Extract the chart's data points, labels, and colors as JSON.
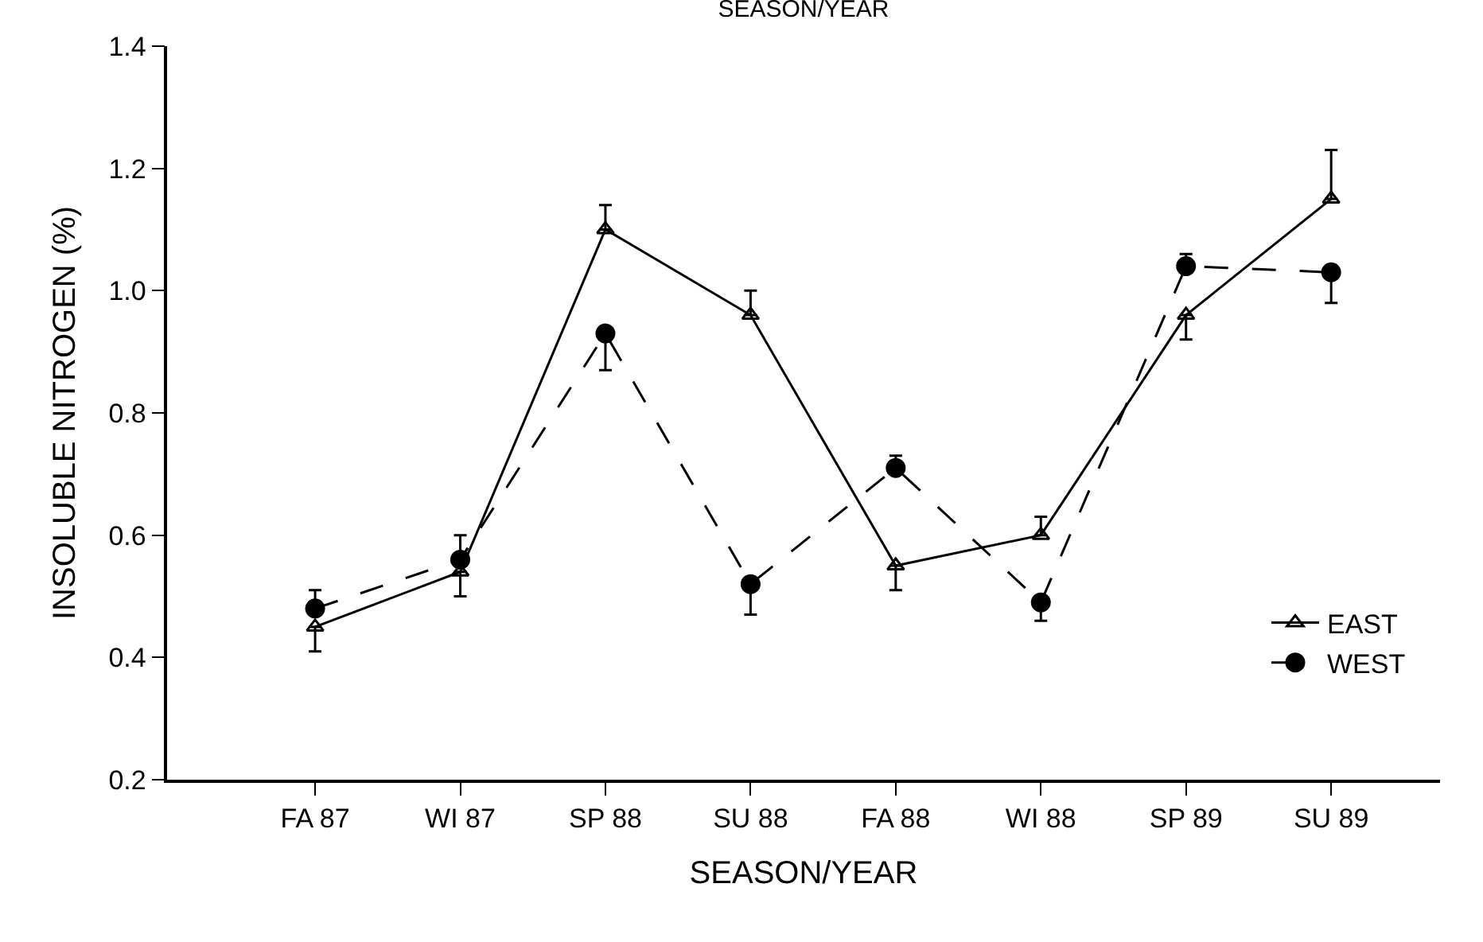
{
  "chart_data": {
    "type": "line",
    "title": "SEASON/YEAR",
    "xlabel": "SEASON/YEAR",
    "ylabel": "INSOLUBLE NITROGEN (%)",
    "categories": [
      "FA 87",
      "WI 87",
      "SP 88",
      "SU 88",
      "FA 88",
      "WI 88",
      "SP 89",
      "SU 89"
    ],
    "ylim": [
      0.2,
      1.4
    ],
    "yticks": [
      0.2,
      0.4,
      0.6,
      0.8,
      {
        "value": 1,
        "label": "1.0"
      },
      1.2,
      1.4
    ],
    "legend": "bottom right",
    "series": [
      {
        "name": "EAST",
        "color": "#000000",
        "marker": "triangle",
        "line_style": "solid",
        "values": [
          0.45,
          0.54,
          1.1,
          0.96,
          0.55,
          0.6,
          0.96,
          1.15
        ],
        "errors": [
          [
            0.41,
            0.45
          ],
          [
            0.5,
            0.54
          ],
          [
            1.1,
            1.14
          ],
          [
            0.96,
            1.0
          ],
          [
            0.51,
            0.55
          ],
          [
            0.6,
            0.63
          ],
          [
            0.92,
            0.96
          ],
          [
            1.15,
            1.23
          ]
        ]
      },
      {
        "name": "WEST",
        "color": "#000000",
        "marker": "circle",
        "line_style": "dashed",
        "values": [
          0.48,
          0.56,
          0.93,
          0.52,
          0.71,
          0.49,
          1.04,
          1.03
        ],
        "errors": [
          [
            0.48,
            0.51
          ],
          [
            0.56,
            0.6
          ],
          [
            0.87,
            0.93
          ],
          [
            0.47,
            0.52
          ],
          [
            0.71,
            0.73
          ],
          [
            0.46,
            0.49
          ],
          [
            1.04,
            1.06
          ],
          [
            0.98,
            1.03
          ]
        ]
      }
    ]
  }
}
